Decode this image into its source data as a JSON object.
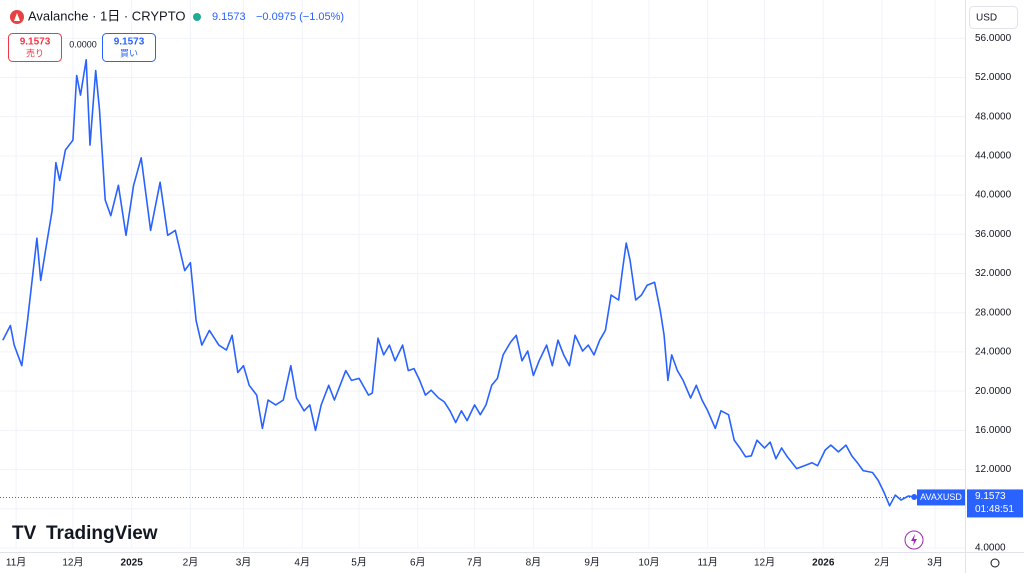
{
  "header": {
    "symbol": "Avalanche · 1日 · CRYPTO",
    "price": "9.1573",
    "change": "−0.0975 (−1.05%)"
  },
  "trade": {
    "sell_price": "9.1573",
    "sell_label": "売り",
    "spread": "0.0000",
    "buy_price": "9.1573",
    "buy_label": "買い"
  },
  "currency": "USD",
  "logo": "TradingView",
  "chart_data": {
    "type": "line",
    "grid": true,
    "x": [
      24,
      28,
      30,
      34,
      37,
      42,
      44,
      47,
      50,
      52,
      54,
      57,
      61,
      63,
      65,
      68,
      70,
      73,
      75,
      78,
      81,
      85,
      89,
      93,
      97,
      102,
      107,
      111,
      115,
      120,
      123,
      126,
      129,
      133,
      138,
      142,
      145,
      148,
      151,
      154,
      158,
      161,
      164,
      168,
      172,
      176,
      179,
      183,
      186,
      189,
      192,
      196,
      199,
      202,
      205,
      208,
      212,
      217,
      219,
      222,
      225,
      228,
      231,
      235,
      238,
      241,
      244,
      247,
      250,
      254,
      257,
      260,
      263,
      266,
      269,
      273,
      276,
      279,
      282,
      285,
      288,
      292,
      295,
      298,
      301,
      304,
      307,
      311,
      314,
      317,
      320,
      323,
      326,
      330,
      333,
      336,
      339,
      342,
      345,
      349,
      351,
      353,
      355,
      358,
      361,
      364,
      368,
      371,
      373,
      375,
      377,
      380,
      383,
      387,
      390,
      393,
      396,
      400,
      403,
      407,
      410,
      413,
      416,
      419,
      422,
      426,
      429,
      432,
      435,
      438,
      443,
      447,
      451,
      454,
      458,
      461,
      465,
      469,
      472,
      475,
      478,
      483,
      486,
      489,
      492,
      495,
      498,
      502,
      505
    ],
    "series": [
      {
        "name": "AVAXUSD",
        "color": "#2962ff",
        "values": [
          25.2,
          26.7,
          24.7,
          22.6,
          27.2,
          35.6,
          31.3,
          34.9,
          38.4,
          43.3,
          41.5,
          44.6,
          45.6,
          52.2,
          50.2,
          53.8,
          45.1,
          52.7,
          48.7,
          39.5,
          37.9,
          41.0,
          35.9,
          41.0,
          43.8,
          36.4,
          41.3,
          35.9,
          36.4,
          32.3,
          33.1,
          27.2,
          24.7,
          26.2,
          24.7,
          24.2,
          25.7,
          21.9,
          22.6,
          20.6,
          19.6,
          16.2,
          19.1,
          18.6,
          19.1,
          22.6,
          19.3,
          18.0,
          18.6,
          16.0,
          18.6,
          20.6,
          19.1,
          20.6,
          22.1,
          21.1,
          21.3,
          19.6,
          19.8,
          25.4,
          23.7,
          24.7,
          23.1,
          24.7,
          22.1,
          22.3,
          21.1,
          19.6,
          20.1,
          19.3,
          18.9,
          18.0,
          16.8,
          18.0,
          17.0,
          18.6,
          17.6,
          18.6,
          20.6,
          21.3,
          23.7,
          25.0,
          25.7,
          23.1,
          24.1,
          21.6,
          23.1,
          24.7,
          22.6,
          25.2,
          23.7,
          22.6,
          25.7,
          24.1,
          24.7,
          23.7,
          25.2,
          26.2,
          29.8,
          29.3,
          32.3,
          35.1,
          33.4,
          29.3,
          29.8,
          30.8,
          31.1,
          28.2,
          25.7,
          21.1,
          23.7,
          22.1,
          21.1,
          19.3,
          20.6,
          19.1,
          18.0,
          16.2,
          18.0,
          17.6,
          15.0,
          14.2,
          13.3,
          13.4,
          15.0,
          14.2,
          14.8,
          13.1,
          14.2,
          13.3,
          12.1,
          12.4,
          12.7,
          12.4,
          14.0,
          14.5,
          13.8,
          14.5,
          13.4,
          12.7,
          11.9,
          11.7,
          10.9,
          9.7,
          8.3,
          9.4,
          8.9,
          9.3,
          9.2
        ]
      }
    ],
    "last_price": 9.1573,
    "countdown": "01:48:51",
    "xlim": [
      22.5,
      531.8
    ],
    "ylim": [
      4,
      59.9
    ],
    "xticks": [
      {
        "value": 31,
        "label": "11月"
      },
      {
        "value": 61,
        "label": "12月"
      },
      {
        "value": 92,
        "label": "2025"
      },
      {
        "value": 123,
        "label": "2月"
      },
      {
        "value": 151,
        "label": "3月"
      },
      {
        "value": 182,
        "label": "4月"
      },
      {
        "value": 212,
        "label": "5月"
      },
      {
        "value": 243,
        "label": "6月"
      },
      {
        "value": 273,
        "label": "7月"
      },
      {
        "value": 304,
        "label": "8月"
      },
      {
        "value": 335,
        "label": "9月"
      },
      {
        "value": 365,
        "label": "10月"
      },
      {
        "value": 396,
        "label": "11月"
      },
      {
        "value": 426,
        "label": "12月"
      },
      {
        "value": 457,
        "label": "2026"
      },
      {
        "value": 488,
        "label": "2月"
      },
      {
        "value": 516,
        "label": "3月"
      }
    ],
    "yticks": [
      {
        "value": 4,
        "label": "4.0000"
      },
      {
        "value": 8,
        "label": "8.0000"
      },
      {
        "value": 12,
        "label": "12.0000"
      },
      {
        "value": 16,
        "label": "16.0000"
      },
      {
        "value": 20,
        "label": "20.0000"
      },
      {
        "value": 24,
        "label": "24.0000"
      },
      {
        "value": 28,
        "label": "28.0000"
      },
      {
        "value": 32,
        "label": "32.0000"
      },
      {
        "value": 36,
        "label": "36.0000"
      },
      {
        "value": 40,
        "label": "40.0000"
      },
      {
        "value": 44,
        "label": "44.0000"
      },
      {
        "value": 48,
        "label": "48.0000"
      },
      {
        "value": 52,
        "label": "52.0000"
      },
      {
        "value": 56,
        "label": "56.0000"
      }
    ]
  }
}
